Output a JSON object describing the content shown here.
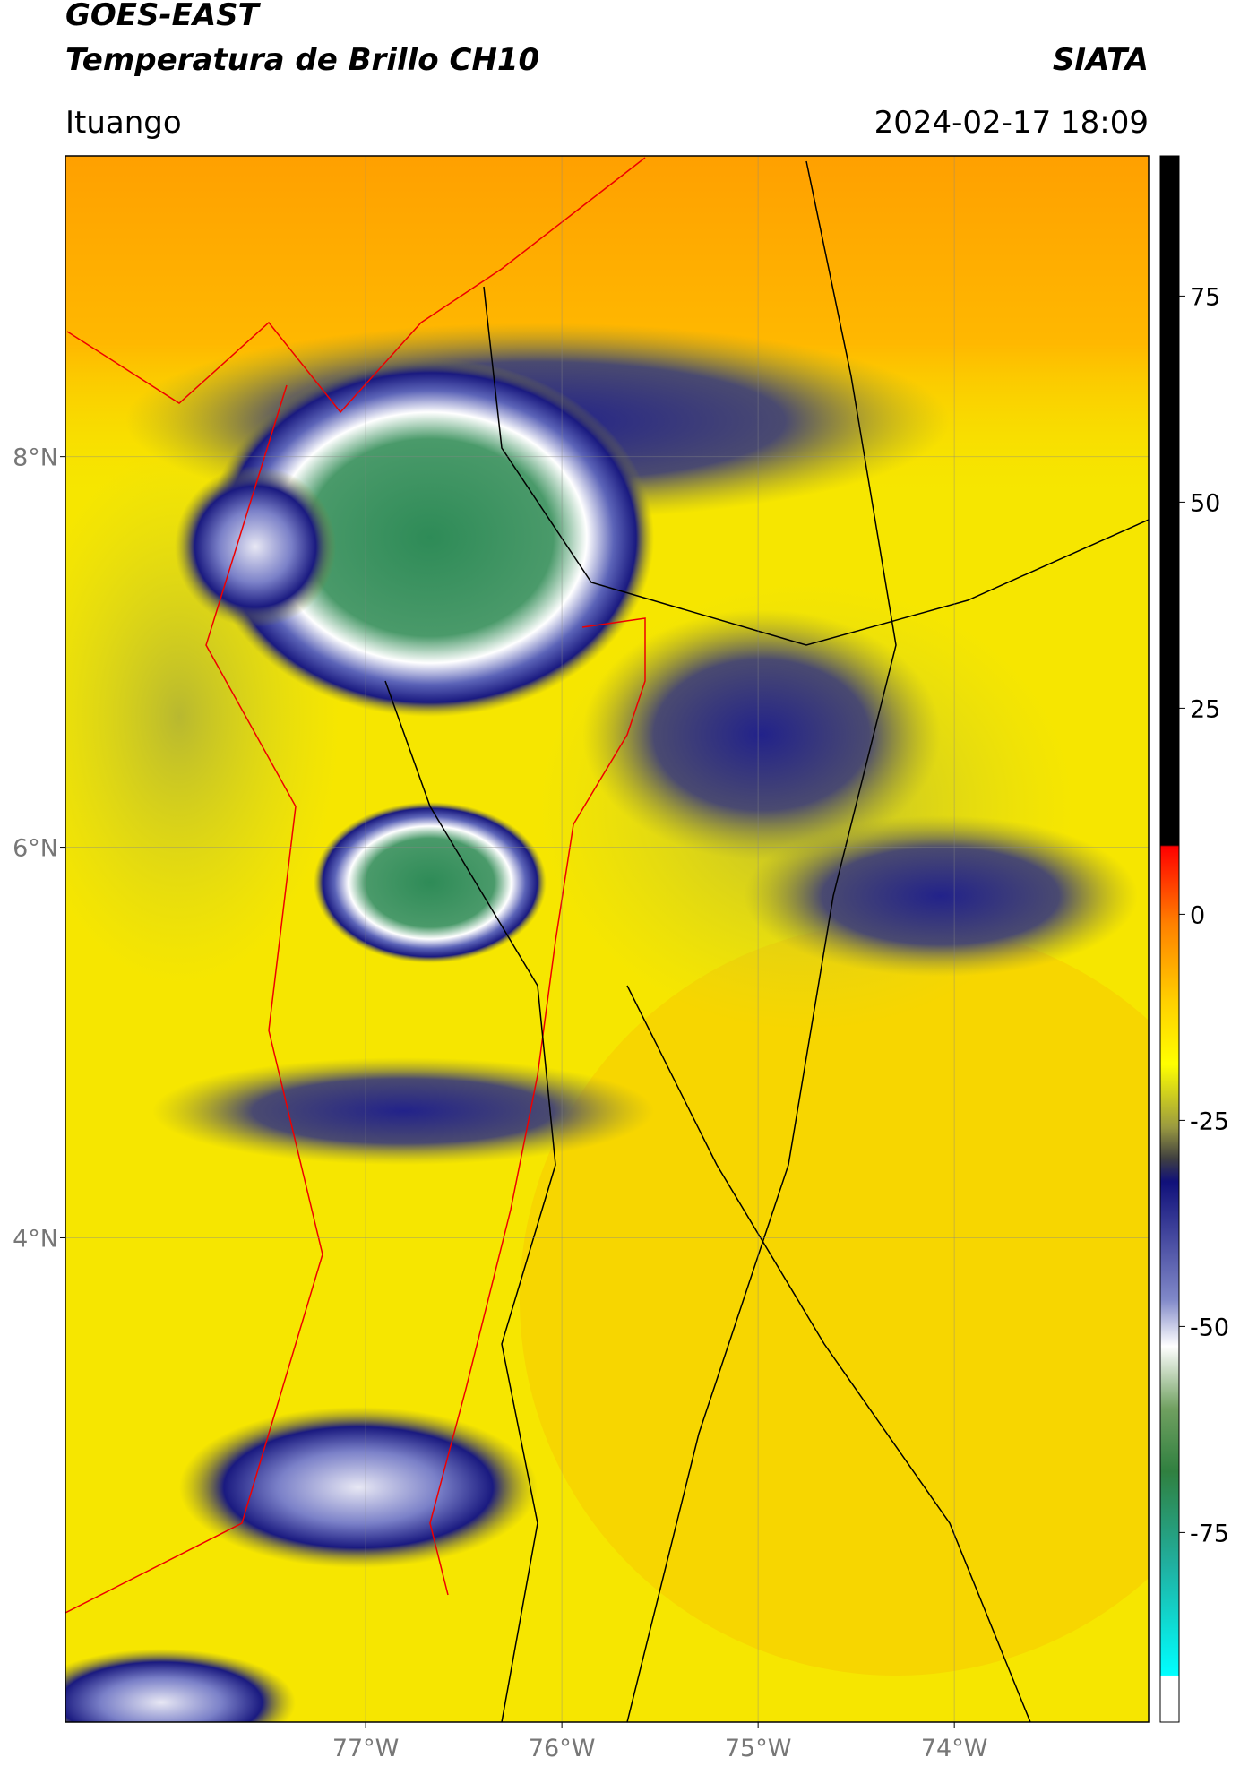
{
  "header": {
    "title_line1": "GOES-EAST",
    "title_line2": "Temperatura de Brillo CH10",
    "brand": "SIATA",
    "location": "Ituango",
    "datetime": "2024-02-17 18:09"
  },
  "map": {
    "ylim": [
      1.52,
      9.54
    ],
    "xlim": [
      -78.53,
      -73.01
    ],
    "lat_ticks": [
      {
        "value": 8,
        "label": "8°N"
      },
      {
        "value": 6,
        "label": "6°N"
      },
      {
        "value": 4,
        "label": "4°N"
      }
    ],
    "lon_ticks": [
      {
        "value": -77,
        "label": "77°W"
      },
      {
        "value": -76,
        "label": "76°W"
      },
      {
        "value": -75,
        "label": "75°W"
      },
      {
        "value": -74,
        "label": "74°W"
      }
    ]
  },
  "colorbar": {
    "range": [
      -98,
      92
    ],
    "ticks": [
      75,
      50,
      25,
      0,
      -25,
      -50,
      -75
    ]
  }
}
